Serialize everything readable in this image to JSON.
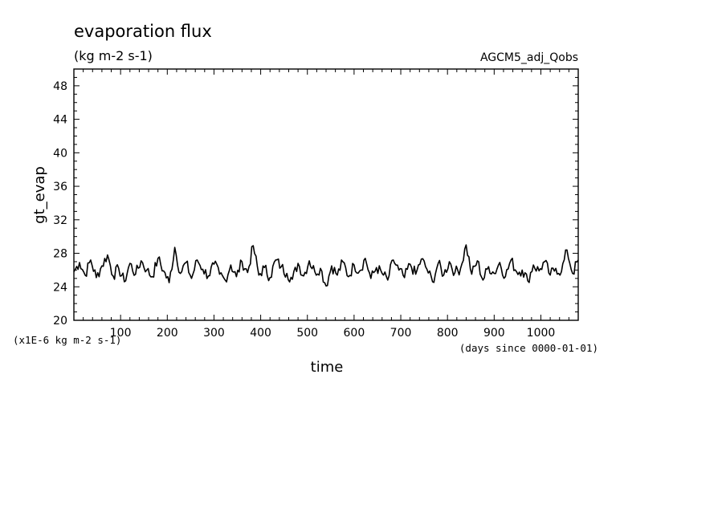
{
  "chart_data": {
    "type": "line",
    "title": "evaporation flux",
    "subtitle": "(kg m-2 s-1)",
    "run_label": "AGCM5_adj_Qobs",
    "xlabel": "time",
    "x_note": "(days since 0000-01-01)",
    "ylabel": "gt_evap",
    "y_note": "(x1E-6 kg m-2 s-1)",
    "xlim": [
      0,
      1080
    ],
    "ylim": [
      20,
      50
    ],
    "x_ticks": [
      100,
      200,
      300,
      400,
      500,
      600,
      700,
      800,
      900,
      1000
    ],
    "y_ticks": [
      20,
      24,
      28,
      32,
      36,
      40,
      44,
      48
    ],
    "grid": false,
    "series": [
      {
        "x": [
          0,
          12,
          24,
          36,
          48,
          60,
          72,
          84,
          96,
          108,
          120,
          132,
          144,
          156,
          168,
          180,
          192,
          204,
          216,
          228,
          240,
          252,
          264,
          276,
          288,
          300,
          312,
          324,
          336,
          348,
          360,
          372,
          384,
          396,
          408,
          420,
          432,
          444,
          456,
          468,
          480,
          492,
          504,
          516,
          528,
          540,
          552,
          564,
          576,
          588,
          600,
          612,
          624,
          636,
          648,
          660,
          672,
          684,
          696,
          708,
          720,
          732,
          744,
          756,
          768,
          780,
          792,
          804,
          816,
          828,
          840,
          852,
          864,
          876,
          888,
          900,
          912,
          924,
          936,
          948,
          960,
          972,
          984,
          996,
          1008,
          1020,
          1032,
          1044,
          1056,
          1068,
          1080
        ],
        "values": [
          25.8,
          26.9,
          25.4,
          27.2,
          25.1,
          26.5,
          27.8,
          25.3,
          26.2,
          24.6,
          26.8,
          25.5,
          27.1,
          26.0,
          25.2,
          27.4,
          25.9,
          24.5,
          28.7,
          25.6,
          26.9,
          25.0,
          27.2,
          26.1,
          25.3,
          26.7,
          25.5,
          24.8,
          26.6,
          25.2,
          27.0,
          25.7,
          28.9,
          25.4,
          26.3,
          25.1,
          27.2,
          26.4,
          25.6,
          24.9,
          26.8,
          25.3,
          27.1,
          25.8,
          26.2,
          24.1,
          26.5,
          25.4,
          27.0,
          25.2,
          26.6,
          25.9,
          27.4,
          25.0,
          26.3,
          25.6,
          24.8,
          27.2,
          26.0,
          25.1,
          26.7,
          25.5,
          27.3,
          26.1,
          24.6,
          26.8,
          25.4,
          27.0,
          25.7,
          26.2,
          29.0,
          25.5,
          27.1,
          24.8,
          26.4,
          25.6,
          26.9,
          25.2,
          27.2,
          25.8,
          26.0,
          24.7,
          26.6,
          25.9,
          27.0,
          25.4,
          26.2,
          25.8,
          28.4,
          25.6,
          27.2
        ]
      }
    ]
  }
}
